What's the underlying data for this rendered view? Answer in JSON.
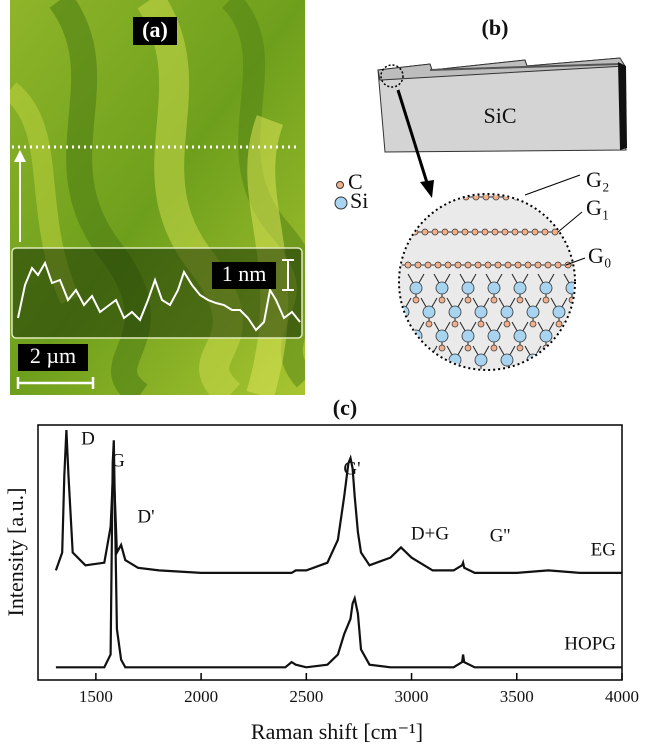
{
  "panel_a": {
    "label": "(a)",
    "height_scale": "1 nm",
    "length_scale": "2 µm"
  },
  "panel_b": {
    "label": "(b)",
    "substrate": "SiC",
    "legend": [
      "C",
      "Si"
    ],
    "layers": [
      "G₂",
      "G₁",
      "G₀"
    ]
  },
  "chart_data": {
    "type": "line",
    "title": "(c)",
    "x_label": "Raman shift [cm⁻¹]",
    "y_label": "Intensity [a.u.]",
    "xlim": [
      1225,
      4000
    ],
    "xticks": [
      1500,
      2000,
      2500,
      3000,
      3500,
      4000
    ],
    "ylim": [
      0,
      1
    ],
    "annotations": [
      "D",
      "G",
      "D'",
      "G'",
      "D+G",
      "G''"
    ],
    "x": [
      1310,
      1340,
      1350,
      1360,
      1370,
      1390,
      1450,
      1540,
      1570,
      1580,
      1585,
      1590,
      1600,
      1620,
      1640,
      1700,
      1800,
      2000,
      2200,
      2400,
      2430,
      2450,
      2500,
      2600,
      2650,
      2680,
      2700,
      2710,
      2720,
      2730,
      2745,
      2760,
      2800,
      2900,
      2950,
      3000,
      3100,
      3200,
      3240,
      3245,
      3250,
      3300,
      3500,
      3650,
      3800,
      4000
    ],
    "series": [
      {
        "name": "EG",
        "color": "#111111",
        "values": [
          0.43,
          0.5,
          0.8,
          0.98,
          0.8,
          0.5,
          0.45,
          0.46,
          0.6,
          0.78,
          0.8,
          0.72,
          0.5,
          0.53,
          0.47,
          0.44,
          0.43,
          0.42,
          0.42,
          0.42,
          0.42,
          0.43,
          0.43,
          0.46,
          0.55,
          0.72,
          0.85,
          0.87,
          0.83,
          0.72,
          0.58,
          0.5,
          0.45,
          0.48,
          0.52,
          0.48,
          0.43,
          0.43,
          0.45,
          0.46,
          0.44,
          0.42,
          0.42,
          0.43,
          0.42,
          0.42
        ]
      },
      {
        "name": "HOPG",
        "color": "#111111",
        "values": [
          0.05,
          0.05,
          0.05,
          0.05,
          0.05,
          0.05,
          0.05,
          0.05,
          0.1,
          0.85,
          0.94,
          0.7,
          0.2,
          0.08,
          0.05,
          0.05,
          0.05,
          0.05,
          0.05,
          0.05,
          0.07,
          0.06,
          0.05,
          0.06,
          0.1,
          0.18,
          0.22,
          0.24,
          0.3,
          0.32,
          0.26,
          0.12,
          0.06,
          0.05,
          0.05,
          0.05,
          0.05,
          0.05,
          0.07,
          0.1,
          0.07,
          0.05,
          0.05,
          0.05,
          0.05,
          0.05
        ]
      }
    ]
  }
}
